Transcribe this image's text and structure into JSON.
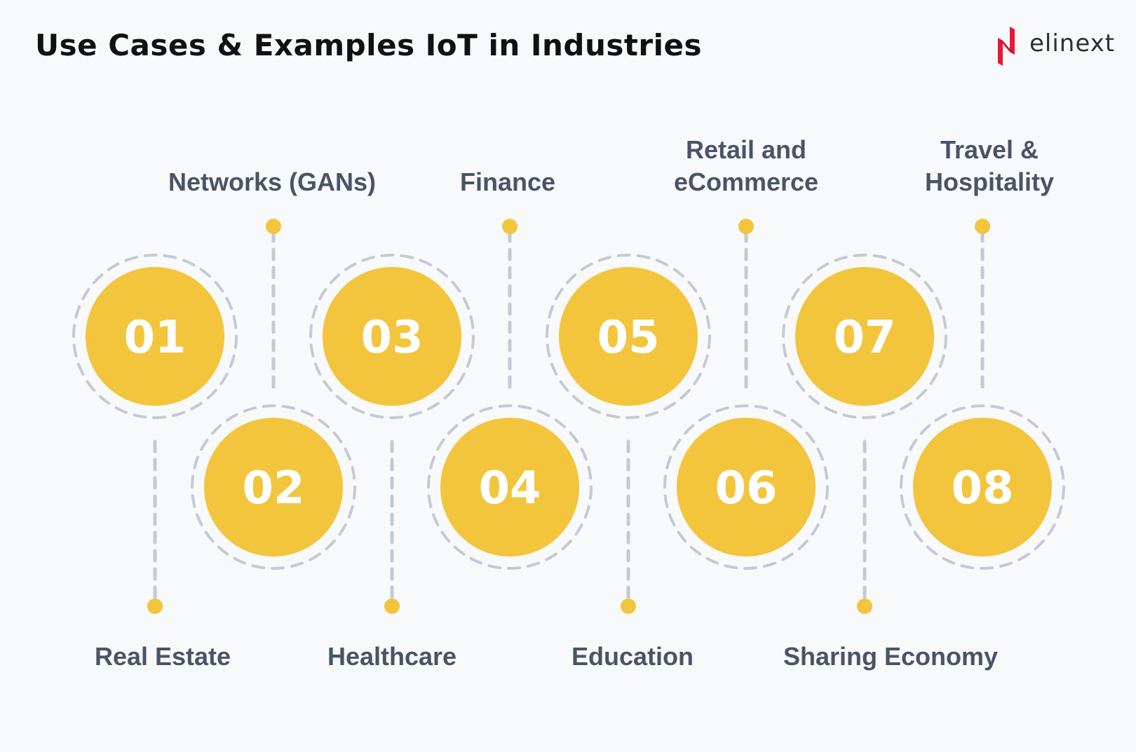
{
  "title": "Use Cases & Examples IoT in Industries",
  "logo": {
    "text": "elinext",
    "mark_color": "#e8173b"
  },
  "colors": {
    "circle": "#f2c53d",
    "dash": "#c3cad6",
    "label": "#4a5466",
    "background": "#f7f9fa"
  },
  "items": [
    {
      "number": "01",
      "label": "Real Estate",
      "position": "bottom"
    },
    {
      "number": "02",
      "label": "Networks (GANs)",
      "position": "top"
    },
    {
      "number": "03",
      "label": "Healthcare",
      "position": "bottom"
    },
    {
      "number": "04",
      "label": "Finance",
      "position": "top"
    },
    {
      "number": "05",
      "label": "Education",
      "position": "bottom"
    },
    {
      "number": "06",
      "label": "Retail and\neCommerce",
      "position": "top"
    },
    {
      "number": "07",
      "label": "Sharing Economy",
      "position": "bottom"
    },
    {
      "number": "08",
      "label": "Travel &\nHospitality",
      "position": "top"
    }
  ]
}
